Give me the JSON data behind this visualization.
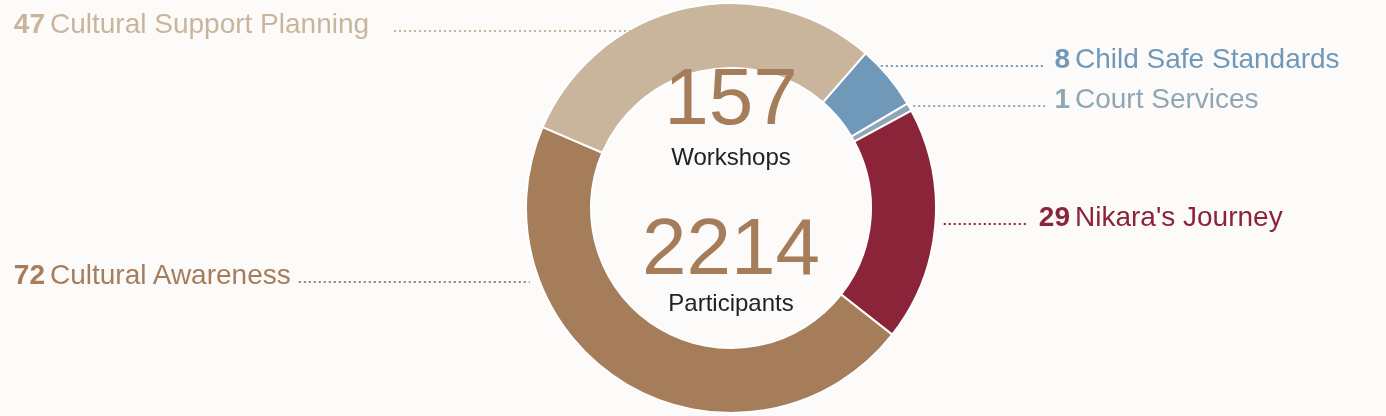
{
  "chart_data": {
    "type": "donut",
    "categories": [
      "Child Safe Standards",
      "Court Services",
      "Nikara's Journey",
      "Cultural Awareness",
      "Cultural Support Planning"
    ],
    "values": [
      8,
      1,
      29,
      72,
      47
    ],
    "colors": [
      "#7098b8",
      "#8fa7b5",
      "#8b2439",
      "#a67d5b",
      "#c9b59b"
    ],
    "data_labels": true,
    "annotations": [
      "157",
      "Workshops",
      "2214",
      "Participants"
    ]
  }
}
